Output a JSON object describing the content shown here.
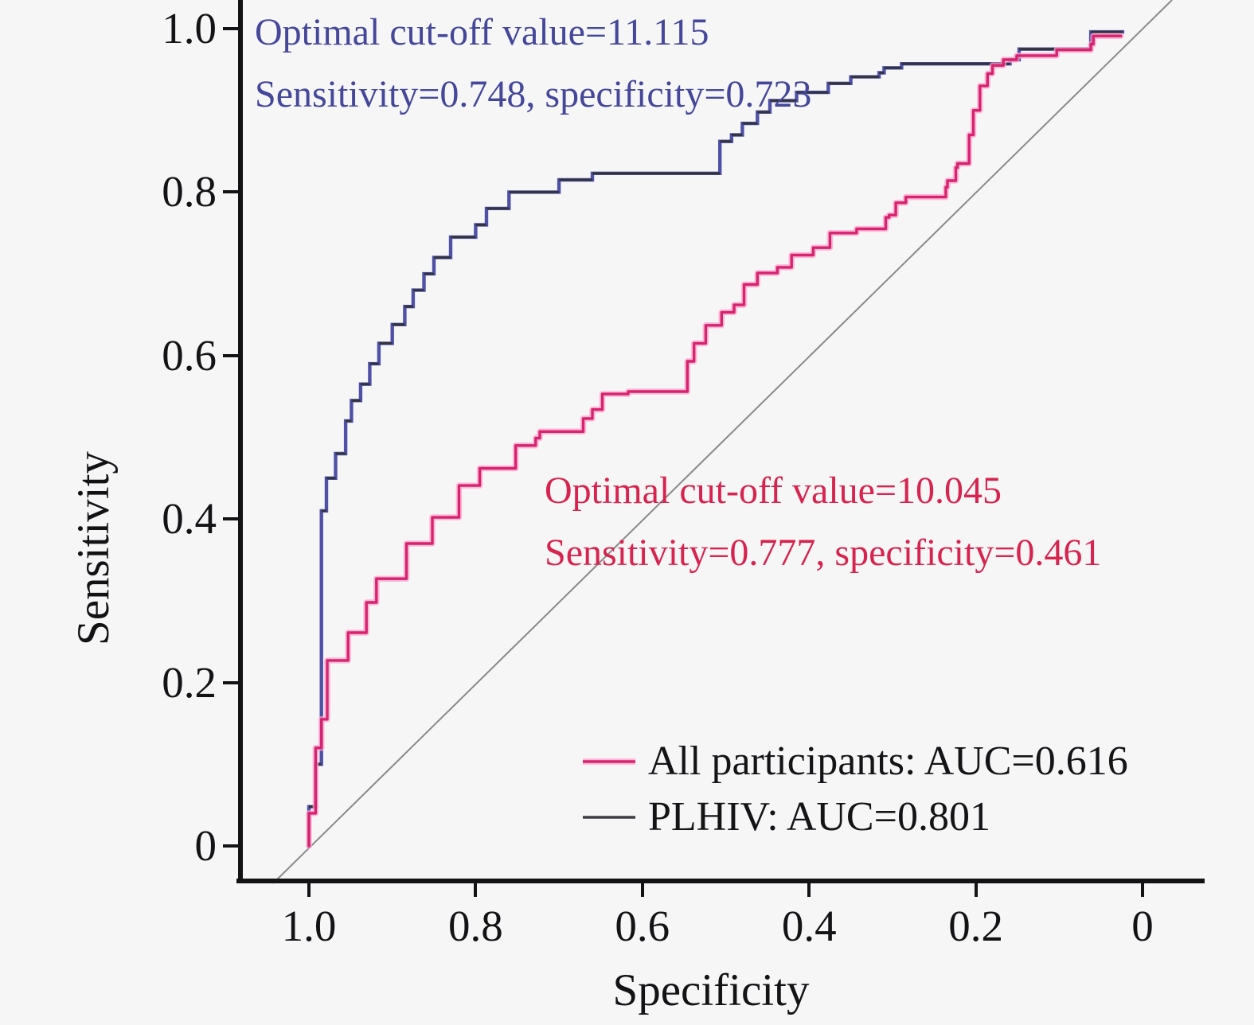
{
  "figure": {
    "background": "#f6f6f7",
    "axis_color": "#131316",
    "diagonal_color": "#8a8a8a"
  },
  "annotations": {
    "plhiv": {
      "line1": "Optimal cut-off value=11.115",
      "line2": "Sensitivity=0.748, specificity=0.723",
      "color": "#45479a"
    },
    "all_participants": {
      "line1": "Optimal cut-off value=10.045",
      "line2": "Sensitivity=0.777, specificity=0.461",
      "color": "#d8234f"
    }
  },
  "legend": {
    "items": [
      {
        "label": "All participants: AUC=0.616",
        "color": "#d6246e",
        "halo": "#ffa3cf"
      },
      {
        "label": "PLHIV: AUC=0.801",
        "color": "#3d3d45"
      }
    ]
  },
  "chart_data": {
    "type": "line",
    "subtype": "roc-step-curves",
    "title": "",
    "xlabel": "Specificity",
    "ylabel": "Sensitivity",
    "x_axis": {
      "range": [
        1.0,
        0.0
      ],
      "reversed": true,
      "ticks": [
        1.0,
        0.8,
        0.6,
        0.4,
        0.2,
        0
      ],
      "tick_labels": [
        "1.0",
        "0.8",
        "0.6",
        "0.4",
        "0.2",
        "0"
      ],
      "grid": false
    },
    "y_axis": {
      "range": [
        0.0,
        1.0
      ],
      "ticks": [
        1.0,
        0.8,
        0.6,
        0.4,
        0.2,
        0
      ],
      "tick_labels": [
        "1.0",
        "0.8",
        "0.6",
        "0.4",
        "0.2",
        "0"
      ],
      "grid": false
    },
    "diagonal_reference": true,
    "legend_position": "lower-right",
    "series": [
      {
        "name": "PLHIV",
        "auc": 0.801,
        "optimal_cutoff": 11.115,
        "optimal_sensitivity": 0.748,
        "optimal_specificity": 0.723,
        "vertical_color": "#4e51a6",
        "horizontal_color": "#33333b",
        "points": [
          [
            1.0,
            0.0
          ],
          [
            1.0,
            0.048
          ],
          [
            0.992,
            0.048
          ],
          [
            0.992,
            0.1
          ],
          [
            0.985,
            0.1
          ],
          [
            0.985,
            0.35
          ],
          [
            0.979,
            0.41
          ],
          [
            0.968,
            0.45
          ],
          [
            0.956,
            0.48
          ],
          [
            0.949,
            0.52
          ],
          [
            0.938,
            0.545
          ],
          [
            0.927,
            0.565
          ],
          [
            0.916,
            0.59
          ],
          [
            0.9,
            0.615
          ],
          [
            0.885,
            0.638
          ],
          [
            0.875,
            0.66
          ],
          [
            0.862,
            0.68
          ],
          [
            0.85,
            0.7
          ],
          [
            0.83,
            0.72
          ],
          [
            0.8,
            0.745
          ],
          [
            0.787,
            0.76
          ],
          [
            0.76,
            0.78
          ],
          [
            0.7,
            0.8
          ],
          [
            0.66,
            0.815
          ],
          [
            0.6,
            0.823
          ],
          [
            0.507,
            0.823
          ],
          [
            0.507,
            0.843
          ],
          [
            0.493,
            0.862
          ],
          [
            0.48,
            0.87
          ],
          [
            0.462,
            0.884
          ],
          [
            0.447,
            0.898
          ],
          [
            0.415,
            0.912
          ],
          [
            0.377,
            0.922
          ],
          [
            0.35,
            0.933
          ],
          [
            0.316,
            0.941
          ],
          [
            0.31,
            0.946
          ],
          [
            0.289,
            0.952
          ],
          [
            0.289,
            0.957
          ],
          [
            0.159,
            0.957
          ],
          [
            0.148,
            0.962
          ],
          [
            0.103,
            0.975
          ],
          [
            0.062,
            0.975
          ],
          [
            0.062,
            0.996
          ],
          [
            0.024,
            0.996
          ]
        ]
      },
      {
        "name": "All participants",
        "auc": 0.616,
        "optimal_cutoff": 10.045,
        "optimal_sensitivity": 0.777,
        "optimal_specificity": 0.461,
        "color": "#d6246e",
        "halo_color": "#ffa3cf",
        "points": [
          [
            1.0,
            0.0
          ],
          [
            1.0,
            0.04
          ],
          [
            0.992,
            0.04
          ],
          [
            0.992,
            0.12
          ],
          [
            0.985,
            0.12
          ],
          [
            0.985,
            0.155
          ],
          [
            0.978,
            0.155
          ],
          [
            0.978,
            0.198
          ],
          [
            0.953,
            0.227
          ],
          [
            0.931,
            0.261
          ],
          [
            0.919,
            0.298
          ],
          [
            0.883,
            0.327
          ],
          [
            0.852,
            0.37
          ],
          [
            0.82,
            0.402
          ],
          [
            0.795,
            0.441
          ],
          [
            0.752,
            0.462
          ],
          [
            0.728,
            0.49
          ],
          [
            0.723,
            0.499
          ],
          [
            0.671,
            0.507
          ],
          [
            0.66,
            0.523
          ],
          [
            0.648,
            0.534
          ],
          [
            0.617,
            0.553
          ],
          [
            0.546,
            0.556
          ],
          [
            0.538,
            0.593
          ],
          [
            0.524,
            0.615
          ],
          [
            0.505,
            0.637
          ],
          [
            0.49,
            0.653
          ],
          [
            0.478,
            0.662
          ],
          [
            0.462,
            0.687
          ],
          [
            0.438,
            0.701
          ],
          [
            0.421,
            0.708
          ],
          [
            0.395,
            0.723
          ],
          [
            0.375,
            0.732
          ],
          [
            0.343,
            0.75
          ],
          [
            0.308,
            0.755
          ],
          [
            0.304,
            0.769
          ],
          [
            0.296,
            0.772
          ],
          [
            0.284,
            0.787
          ],
          [
            0.265,
            0.794
          ],
          [
            0.236,
            0.794
          ],
          [
            0.234,
            0.806
          ],
          [
            0.224,
            0.814
          ],
          [
            0.222,
            0.83
          ],
          [
            0.208,
            0.835
          ],
          [
            0.203,
            0.87
          ],
          [
            0.195,
            0.9
          ],
          [
            0.186,
            0.93
          ],
          [
            0.18,
            0.945
          ],
          [
            0.167,
            0.955
          ],
          [
            0.151,
            0.962
          ],
          [
            0.146,
            0.967
          ],
          [
            0.103,
            0.967
          ],
          [
            0.101,
            0.974
          ],
          [
            0.062,
            0.974
          ],
          [
            0.059,
            0.981
          ],
          [
            0.038,
            0.991
          ],
          [
            0.026,
            0.991
          ]
        ]
      }
    ]
  }
}
